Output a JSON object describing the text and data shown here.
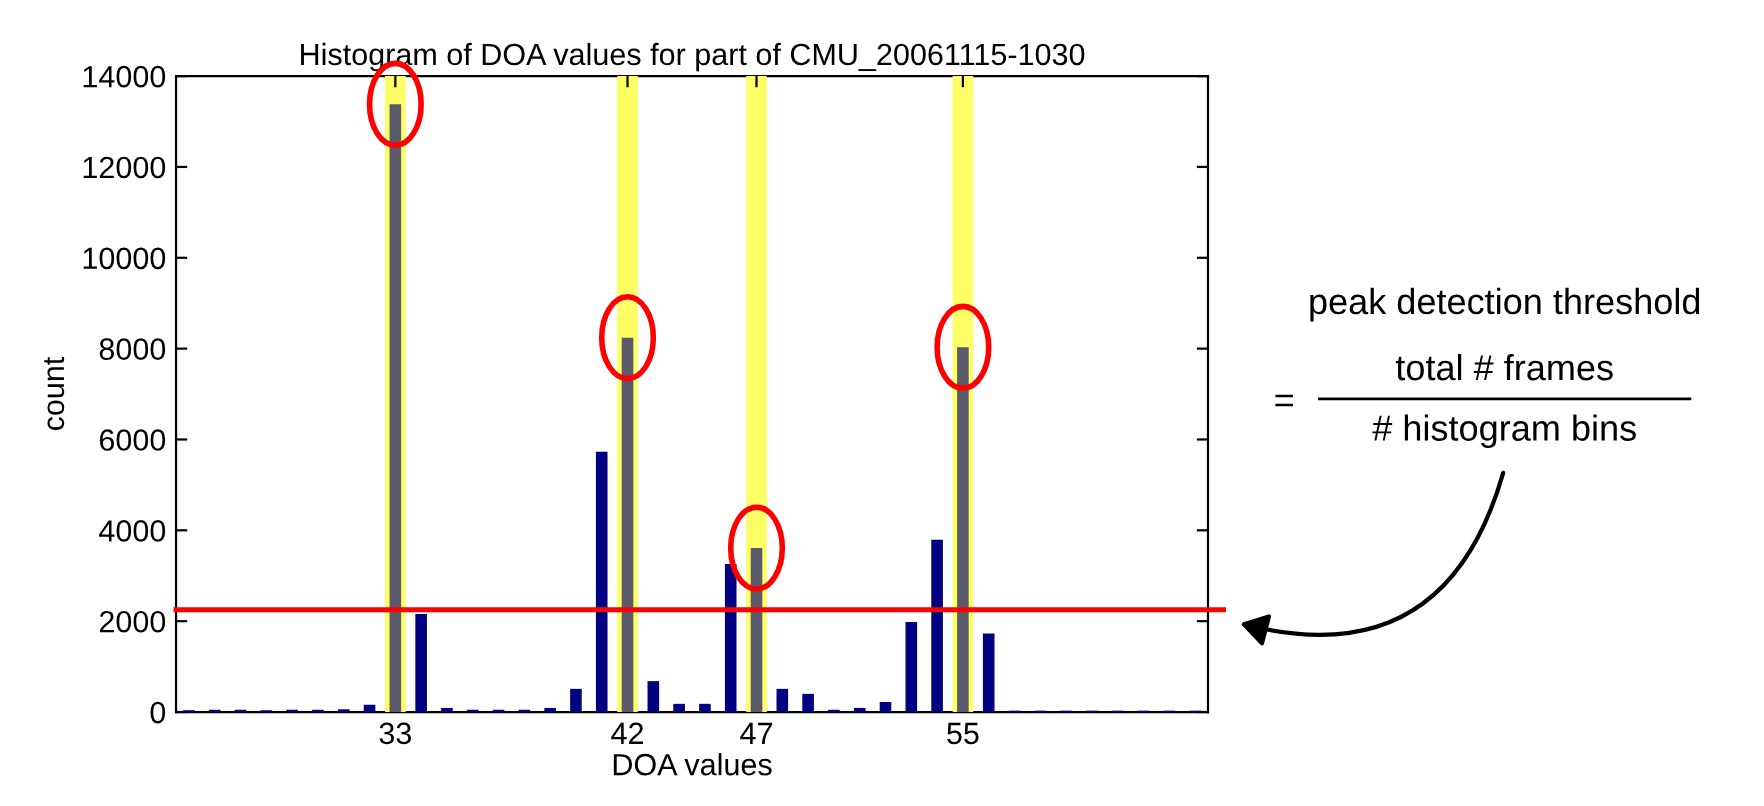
{
  "chart_data": {
    "type": "histogram",
    "title": "Histogram of DOA values for part of CMU_20061115-1030",
    "xlabel": "DOA values",
    "ylabel": "count",
    "bins": [
      24.5,
      25.5,
      26.5,
      27.5,
      28.5,
      29.5,
      30.5,
      31.5,
      32.5,
      33.5,
      34.5,
      35.5,
      36.5,
      37.5,
      38.5,
      39.5,
      40.5,
      41.5,
      42.5,
      43.5,
      44.5,
      45.5,
      46.5,
      47.5,
      48.5,
      49.5,
      50.5,
      51.5,
      52.5,
      53.5,
      54.5,
      55.5,
      56.5,
      57.5,
      58.5,
      59.5,
      60.5,
      61.5,
      62.5,
      63.5,
      64.5
    ],
    "values": [
      40,
      50,
      50,
      40,
      50,
      50,
      60,
      160,
      13380,
      2160,
      90,
      50,
      50,
      50,
      90,
      510,
      5730,
      8240,
      680,
      180,
      180,
      3260,
      3610,
      510,
      400,
      50,
      90,
      220,
      1980,
      3790,
      8030,
      1730,
      30,
      30,
      30,
      30,
      30,
      30,
      30,
      30
    ],
    "colors": [
      "#000080",
      "#000080",
      "#000080",
      "#000080",
      "#000080",
      "#000080",
      "#000080",
      "#000080",
      "#5a5a6a",
      "#000080",
      "#000080",
      "#000080",
      "#000080",
      "#000080",
      "#000080",
      "#000080",
      "#000080",
      "#5a5a6a",
      "#000080",
      "#000080",
      "#000080",
      "#000080",
      "#5a5a6a",
      "#000080",
      "#000080",
      "#000080",
      "#000080",
      "#000080",
      "#000080",
      "#000080",
      "#5a5a6a",
      "#000080",
      "#000080",
      "#000080",
      "#000080",
      "#000080",
      "#000080",
      "#000080",
      "#000080",
      "#000080"
    ],
    "xlim": [
      24.5,
      64.5
    ],
    "xticks": [
      33,
      42,
      47,
      55
    ],
    "ylim": [
      0,
      14000
    ],
    "yticks": [
      0,
      2000,
      4000,
      6000,
      8000,
      10000,
      12000,
      14000
    ],
    "grid": false,
    "legend": false,
    "bands": [
      {
        "axis": "x",
        "from": 32.6,
        "to": 33.4,
        "color": "#ffff66"
      },
      {
        "axis": "x",
        "from": 41.6,
        "to": 42.4,
        "color": "#ffff66"
      },
      {
        "axis": "x",
        "from": 46.6,
        "to": 47.4,
        "color": "#ffff66"
      },
      {
        "axis": "x",
        "from": 54.6,
        "to": 55.4,
        "color": "#ffff66"
      }
    ],
    "ref_lines": [
      {
        "axis": "y",
        "value": 2250,
        "color": "#ff0000",
        "line_style": "solid"
      }
    ],
    "annotations": [
      "peak detection threshold",
      "=",
      "total # frames",
      "# histogram bins"
    ]
  }
}
